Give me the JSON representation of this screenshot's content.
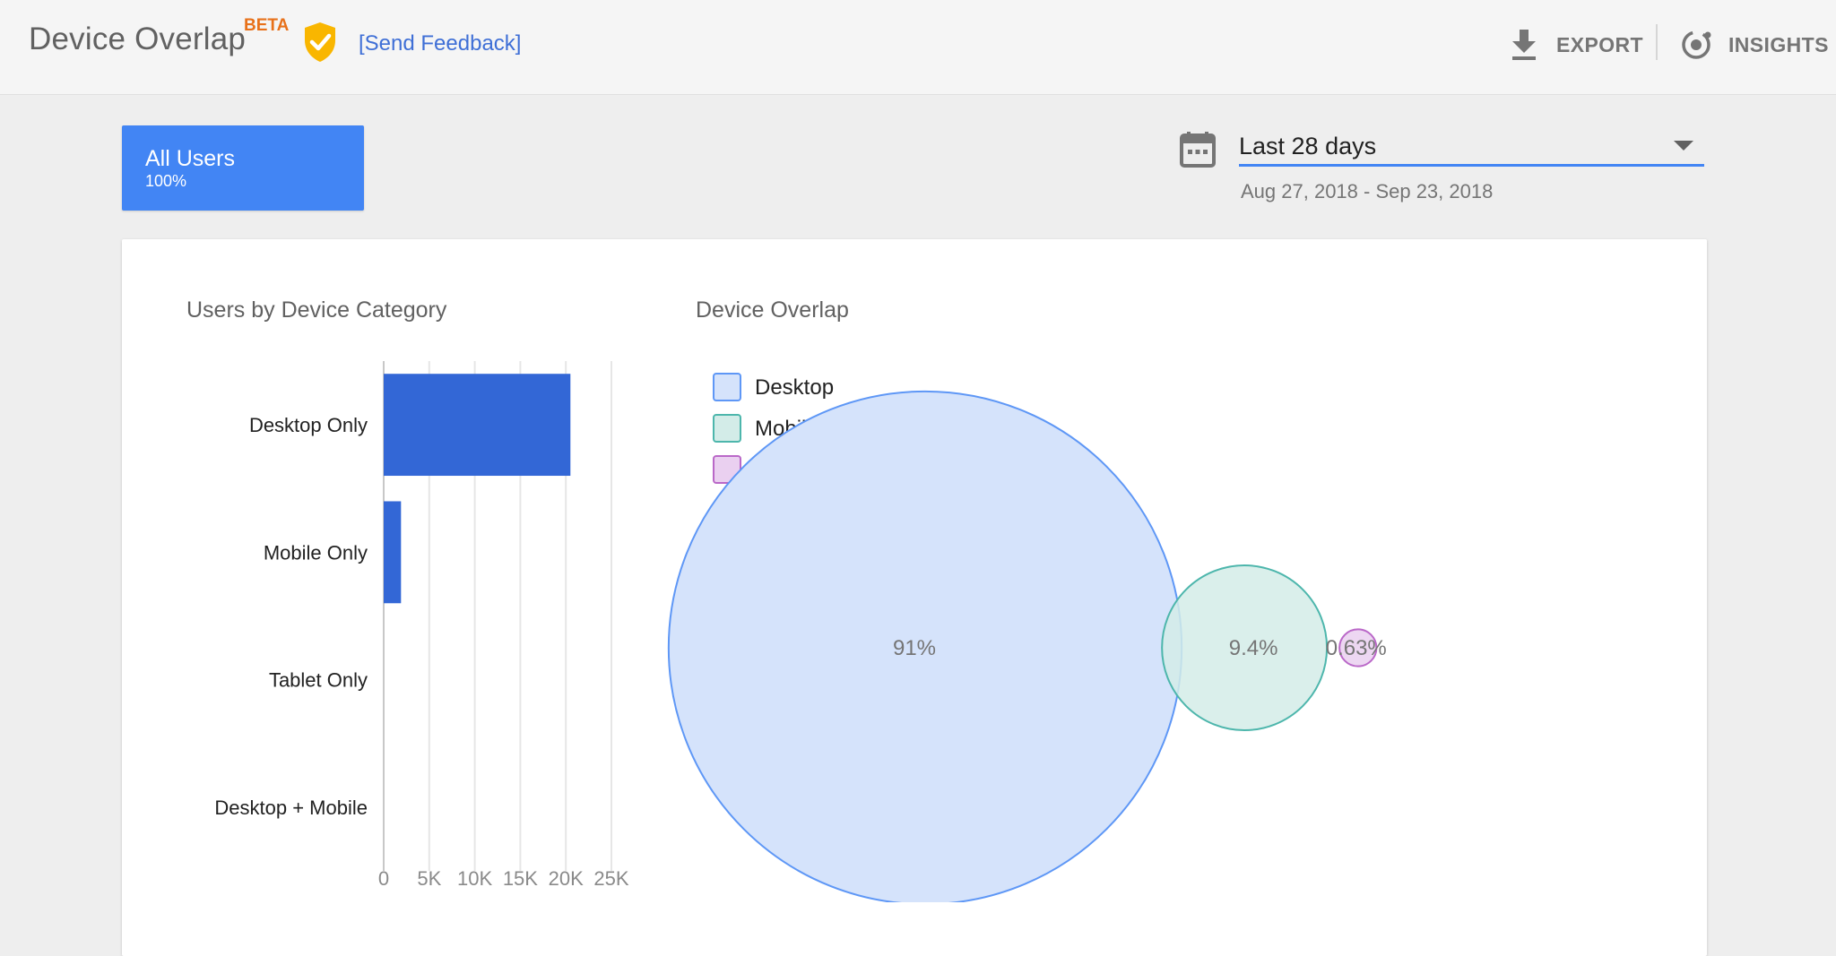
{
  "header": {
    "title": "Device Overlap",
    "beta_label": "BETA",
    "feedback_label": "[Send Feedback]",
    "export_label": "EXPORT",
    "insights_label": "INSIGHTS"
  },
  "segment": {
    "name": "All Users",
    "percent": "100%"
  },
  "date_range": {
    "selected": "Last 28 days",
    "dates": "Aug 27, 2018 - Sep 23, 2018"
  },
  "icons": {
    "shield": "verified-shield-icon",
    "export": "download-icon",
    "insights": "insights-icon",
    "calendar": "calendar-icon",
    "dropdown": "caret-down-icon"
  },
  "colors": {
    "accent": "#4285f4",
    "bar": "#3367d6",
    "desktop_fill": "#d5e3fb",
    "desktop_stroke": "#5e97f6",
    "mobile_fill": "#d3ece8",
    "mobile_stroke": "#4db6ac",
    "tablet_fill": "#ead0f0",
    "tablet_stroke": "#ba68c8",
    "beta": "#e8711a",
    "shield": "#f9b600"
  },
  "chart_data": [
    {
      "type": "bar",
      "orientation": "horizontal",
      "title": "Users by Device Category",
      "categories": [
        "Desktop Only",
        "Mobile Only",
        "Tablet Only",
        "Desktop + Mobile"
      ],
      "values": [
        20500,
        1900,
        0,
        0
      ],
      "xlim": [
        0,
        25000
      ],
      "xticks": [
        "0",
        "5K",
        "10K",
        "15K",
        "20K",
        "25K"
      ],
      "grid": true
    },
    {
      "type": "venn",
      "title": "Device Overlap",
      "legend": [
        "Desktop",
        "Mobile",
        "Tablet"
      ],
      "legend_position": "top-left",
      "sets": [
        {
          "name": "Desktop",
          "label": "91%",
          "value": 91
        },
        {
          "name": "Mobile",
          "label": "9.4%",
          "value": 9.4
        },
        {
          "name": "Tablet",
          "label": "0.63%",
          "value": 0.63
        }
      ]
    }
  ]
}
